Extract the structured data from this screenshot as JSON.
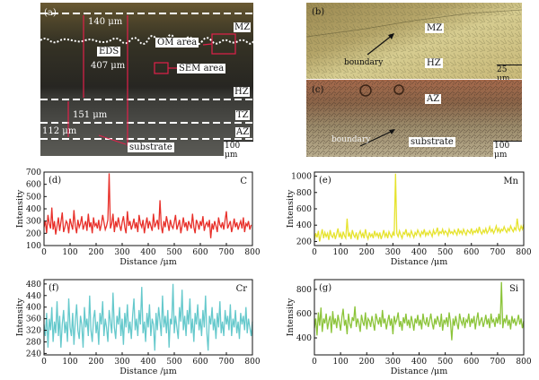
{
  "figure": {
    "panel_a": {
      "label": "(a)",
      "dims": [
        "140 μm",
        "407 μm",
        "151 μm",
        "112 μm"
      ],
      "zones": [
        "MZ",
        "HZ",
        "TZ",
        "AZ"
      ],
      "callouts": [
        "OM area",
        "EDS",
        "SEM area",
        "substrate"
      ],
      "scale": "100 μm"
    },
    "panel_b": {
      "label": "(b)",
      "zones": [
        "MZ",
        "HZ"
      ],
      "boundary": "boundary",
      "scale": "25 μm"
    },
    "panel_c": {
      "label": "(c)",
      "zones": [
        "AZ",
        "substrate"
      ],
      "boundary": "boundary",
      "scale": "100 μm"
    }
  },
  "chart_data": [
    {
      "id": "d",
      "type": "line",
      "panel_label": "(d)",
      "element": "C",
      "color": "#e8302a",
      "xlabel": "Distance /μm",
      "ylabel": "Intensity",
      "xlim": [
        0,
        800
      ],
      "ylim": [
        100,
        700
      ],
      "xticks": [
        0,
        100,
        200,
        300,
        400,
        500,
        600,
        700,
        800
      ],
      "yticks": [
        100,
        200,
        300,
        400,
        500,
        600,
        700
      ],
      "x_step": 5,
      "y": [
        250,
        300,
        200,
        350,
        280,
        240,
        410,
        230,
        300,
        190,
        260,
        330,
        220,
        290,
        370,
        210,
        250,
        300,
        280,
        200,
        320,
        270,
        230,
        390,
        260,
        200,
        310,
        250,
        280,
        340,
        230,
        270,
        300,
        220,
        360,
        250,
        290,
        200,
        330,
        260,
        280,
        240,
        310,
        220,
        270,
        350,
        290,
        230,
        260,
        310,
        690,
        240,
        280,
        360,
        210,
        300,
        250,
        330,
        270,
        220,
        290,
        340,
        250,
        200,
        380,
        260,
        300,
        230,
        270,
        320,
        240,
        290,
        210,
        350,
        280,
        250,
        310,
        200,
        270,
        330,
        240,
        300,
        260,
        220,
        360,
        250,
        280,
        310,
        230,
        470,
        260,
        200,
        300,
        250,
        340,
        280,
        220,
        310,
        260,
        240,
        290,
        350,
        230,
        270,
        310,
        200,
        260,
        330,
        250,
        290,
        220,
        300,
        270,
        240,
        360,
        250,
        200,
        310,
        280,
        230,
        300,
        260,
        340,
        220,
        270,
        290,
        250,
        310,
        160,
        280,
        230,
        300,
        260,
        210,
        330,
        270,
        250,
        290,
        230,
        310,
        380,
        240,
        270,
        300,
        210,
        260,
        320,
        250,
        290,
        230,
        270,
        300,
        240,
        330,
        210,
        280,
        260,
        300,
        230,
        270
      ]
    },
    {
      "id": "e",
      "type": "line",
      "panel_label": "(e)",
      "element": "Mn",
      "color": "#e6e32e",
      "xlabel": "Distance /μm",
      "ylabel": "Intensity",
      "xlim": [
        0,
        800
      ],
      "ylim": [
        150,
        1050
      ],
      "xticks": [
        0,
        100,
        200,
        300,
        400,
        500,
        600,
        700,
        800
      ],
      "yticks": [
        200,
        400,
        600,
        800,
        1000
      ],
      "x_step": 5,
      "y": [
        220,
        300,
        250,
        330,
        200,
        280,
        350,
        240,
        310,
        260,
        300,
        220,
        340,
        270,
        250,
        310,
        230,
        290,
        360,
        250,
        300,
        230,
        320,
        270,
        240,
        480,
        260,
        300,
        230,
        340,
        280,
        250,
        310,
        220,
        290,
        330,
        260,
        300,
        240,
        350,
        270,
        230,
        310,
        260,
        290,
        240,
        330,
        270,
        300,
        250,
        310,
        230,
        280,
        340,
        260,
        300,
        240,
        320,
        280,
        250,
        310,
        270,
        1030,
        300,
        260,
        330,
        280,
        240,
        310,
        290,
        350,
        270,
        300,
        260,
        330,
        290,
        250,
        310,
        280,
        340,
        300,
        260,
        320,
        290,
        350,
        270,
        310,
        280,
        330,
        300,
        260,
        340,
        290,
        310,
        370,
        280,
        320,
        300,
        350,
        290,
        330,
        310,
        270,
        350,
        300,
        320,
        290,
        340,
        310,
        280,
        360,
        300,
        330,
        290,
        350,
        310,
        280,
        340,
        320,
        300,
        360,
        290,
        330,
        310,
        350,
        300,
        380,
        320,
        290,
        340,
        310,
        360,
        300,
        330,
        380,
        320,
        350,
        300,
        340,
        390,
        320,
        360,
        310,
        350,
        330,
        380,
        340,
        310,
        360,
        330,
        390,
        350,
        320,
        370,
        340,
        480,
        360,
        330,
        390,
        350,
        410
      ]
    },
    {
      "id": "f",
      "type": "line",
      "panel_label": "(f)",
      "element": "Cr",
      "color": "#66c9cc",
      "xlabel": "Distance /μm",
      "ylabel": "Intensity",
      "xlim": [
        0,
        800
      ],
      "ylim": [
        235,
        495
      ],
      "xticks": [
        0,
        100,
        200,
        300,
        400,
        500,
        600,
        700,
        800
      ],
      "yticks": [
        240,
        280,
        320,
        360,
        400,
        440,
        480
      ],
      "x_step": 5,
      "y": [
        340,
        300,
        380,
        260,
        360,
        320,
        400,
        280,
        350,
        310,
        420,
        300,
        370,
        260,
        340,
        390,
        310,
        350,
        280,
        430,
        330,
        300,
        380,
        270,
        350,
        410,
        320,
        290,
        370,
        340,
        260,
        400,
        330,
        360,
        300,
        440,
        320,
        280,
        360,
        390,
        310,
        350,
        270,
        380,
        340,
        420,
        300,
        360,
        330,
        280,
        390,
        350,
        310,
        450,
        330,
        290,
        370,
        340,
        400,
        300,
        360,
        270,
        380,
        330,
        410,
        310,
        350,
        290,
        370,
        430,
        320,
        360,
        300,
        390,
        340,
        470,
        310,
        350,
        280,
        380,
        330,
        410,
        300,
        360,
        340,
        250,
        380,
        320,
        400,
        350,
        300,
        440,
        330,
        370,
        310,
        390,
        260,
        360,
        340,
        480,
        310,
        370,
        330,
        290,
        400,
        350,
        460,
        320,
        370,
        300,
        390,
        340,
        430,
        310,
        360,
        280,
        380,
        340,
        410,
        320,
        360,
        300,
        390,
        330,
        440,
        310,
        250,
        370,
        340,
        400,
        320,
        360,
        290,
        380,
        330,
        420,
        310,
        350,
        300,
        390,
        340,
        370,
        320,
        410,
        300,
        360,
        330,
        390,
        310,
        350,
        290,
        380,
        340,
        370,
        320,
        400,
        310,
        360,
        330,
        300,
        350
      ]
    },
    {
      "id": "g",
      "type": "line",
      "panel_label": "(g)",
      "element": "Si",
      "color": "#8cc43a",
      "xlabel": "Distance /μm",
      "ylabel": "Intensity",
      "xlim": [
        0,
        800
      ],
      "ylim": [
        260,
        880
      ],
      "xticks": [
        0,
        100,
        200,
        300,
        400,
        500,
        600,
        700,
        800
      ],
      "yticks": [
        400,
        600,
        800
      ],
      "x_step": 5,
      "y": [
        480,
        560,
        420,
        610,
        500,
        650,
        450,
        560,
        520,
        600,
        470,
        540,
        580,
        440,
        620,
        510,
        560,
        480,
        590,
        530,
        460,
        570,
        640,
        500,
        550,
        430,
        600,
        520,
        480,
        570,
        540,
        660,
        490,
        560,
        520,
        450,
        590,
        530,
        500,
        610,
        470,
        560,
        540,
        490,
        580,
        520,
        460,
        600,
        550,
        510,
        570,
        490,
        630,
        520,
        560,
        470,
        540,
        590,
        500,
        560,
        430,
        580,
        520,
        550,
        610,
        490,
        540,
        460,
        570,
        520,
        600,
        500,
        550,
        480,
        580,
        530,
        460,
        560,
        520,
        590,
        500,
        550,
        470,
        600,
        530,
        510,
        570,
        490,
        540,
        600,
        520,
        470,
        560,
        510,
        580,
        540,
        490,
        600,
        460,
        550,
        520,
        570,
        490,
        610,
        530,
        380,
        560,
        500,
        580,
        520,
        470,
        600,
        540,
        510,
        570,
        480,
        550,
        530,
        600,
        490,
        560,
        520,
        580,
        470,
        550,
        610,
        500,
        540,
        570,
        490,
        530,
        590,
        510,
        560,
        480,
        600,
        530,
        550,
        490,
        570,
        520,
        600,
        510,
        860,
        480,
        560,
        530,
        590,
        500,
        550,
        470,
        580,
        520,
        560,
        500,
        540,
        590,
        510,
        560,
        480,
        540
      ]
    }
  ]
}
